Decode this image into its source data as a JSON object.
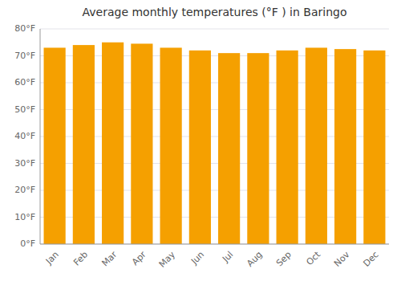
{
  "chart_data": {
    "type": "bar",
    "title": "Average monthly temperatures (°F ) in Baringo",
    "categories": [
      "Jan",
      "Feb",
      "Mar",
      "Apr",
      "May",
      "Jun",
      "Jul",
      "Aug",
      "Sep",
      "Oct",
      "Nov",
      "Dec"
    ],
    "values": [
      73,
      74,
      75,
      74.5,
      73,
      72,
      71,
      71,
      72,
      73,
      72.5,
      72
    ],
    "color": "#F5A000",
    "ylim": [
      0,
      80
    ],
    "yticks": [
      {
        "value": 0,
        "label": "0°F"
      },
      {
        "value": 10,
        "label": "10°F"
      },
      {
        "value": 20,
        "label": "20°F"
      },
      {
        "value": 30,
        "label": "30°F"
      },
      {
        "value": 40,
        "label": "40°F"
      },
      {
        "value": 50,
        "label": "50°F"
      },
      {
        "value": 60,
        "label": "60°F"
      },
      {
        "value": 70,
        "label": "70°F"
      },
      {
        "value": 80,
        "label": "80°F"
      }
    ],
    "grid": true
  }
}
